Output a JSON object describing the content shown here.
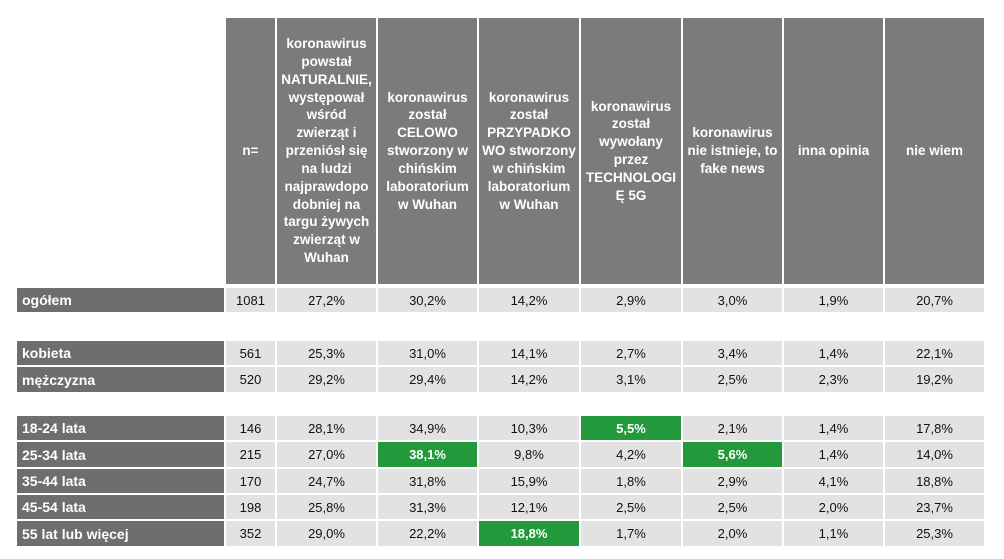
{
  "chart_data": {
    "type": "table",
    "n_header": "n=",
    "columns": [
      "koronawirus powstał NATURALNIE, występował wśród zwierząt i przeniósł się na ludzi najprawdopo dobniej na targu żywych zwierząt w Wuhan",
      "koronawirus został CELOWO stworzony w chińskim laboratorium w Wuhan",
      "koronawirus został PRZYPADKO WO stworzony w chińskim laboratorium w Wuhan",
      "koronawirus został wywołany przez TECHNOLOGI Ę 5G",
      "koronawirus nie istnieje, to fake news",
      "inna opinia",
      "nie wiem"
    ],
    "rows": [
      {
        "label": "ogółem",
        "n": "1081",
        "values": [
          "27,2%",
          "30,2%",
          "14,2%",
          "2,9%",
          "3,0%",
          "1,9%",
          "20,7%"
        ],
        "highlight": []
      },
      {
        "label": "kobieta",
        "n": "561",
        "values": [
          "25,3%",
          "31,0%",
          "14,1%",
          "2,7%",
          "3,4%",
          "1,4%",
          "22,1%"
        ],
        "highlight": []
      },
      {
        "label": "mężczyzna",
        "n": "520",
        "values": [
          "29,2%",
          "29,4%",
          "14,2%",
          "3,1%",
          "2,5%",
          "2,3%",
          "19,2%"
        ],
        "highlight": []
      },
      {
        "label": "18-24 lata",
        "n": "146",
        "values": [
          "28,1%",
          "34,9%",
          "10,3%",
          "5,5%",
          "2,1%",
          "1,4%",
          "17,8%"
        ],
        "highlight": [
          3
        ]
      },
      {
        "label": "25-34 lata",
        "n": "215",
        "values": [
          "27,0%",
          "38,1%",
          "9,8%",
          "4,2%",
          "5,6%",
          "1,4%",
          "14,0%"
        ],
        "highlight": [
          1,
          4
        ]
      },
      {
        "label": "35-44 lata",
        "n": "170",
        "values": [
          "24,7%",
          "31,8%",
          "15,9%",
          "1,8%",
          "2,9%",
          "4,1%",
          "18,8%"
        ],
        "highlight": []
      },
      {
        "label": "45-54 lata",
        "n": "198",
        "values": [
          "25,8%",
          "31,3%",
          "12,1%",
          "2,5%",
          "2,5%",
          "2,0%",
          "23,7%"
        ],
        "highlight": []
      },
      {
        "label": "55 lat lub więcej",
        "n": "352",
        "values": [
          "29,0%",
          "22,2%",
          "18,8%",
          "1,7%",
          "2,0%",
          "1,1%",
          "25,3%"
        ],
        "highlight": [
          2
        ]
      }
    ],
    "colors": {
      "header": "#7b7b7b",
      "label": "#6e6e6e",
      "cell": "#e2e2e2",
      "highlight": "#22993a"
    }
  }
}
